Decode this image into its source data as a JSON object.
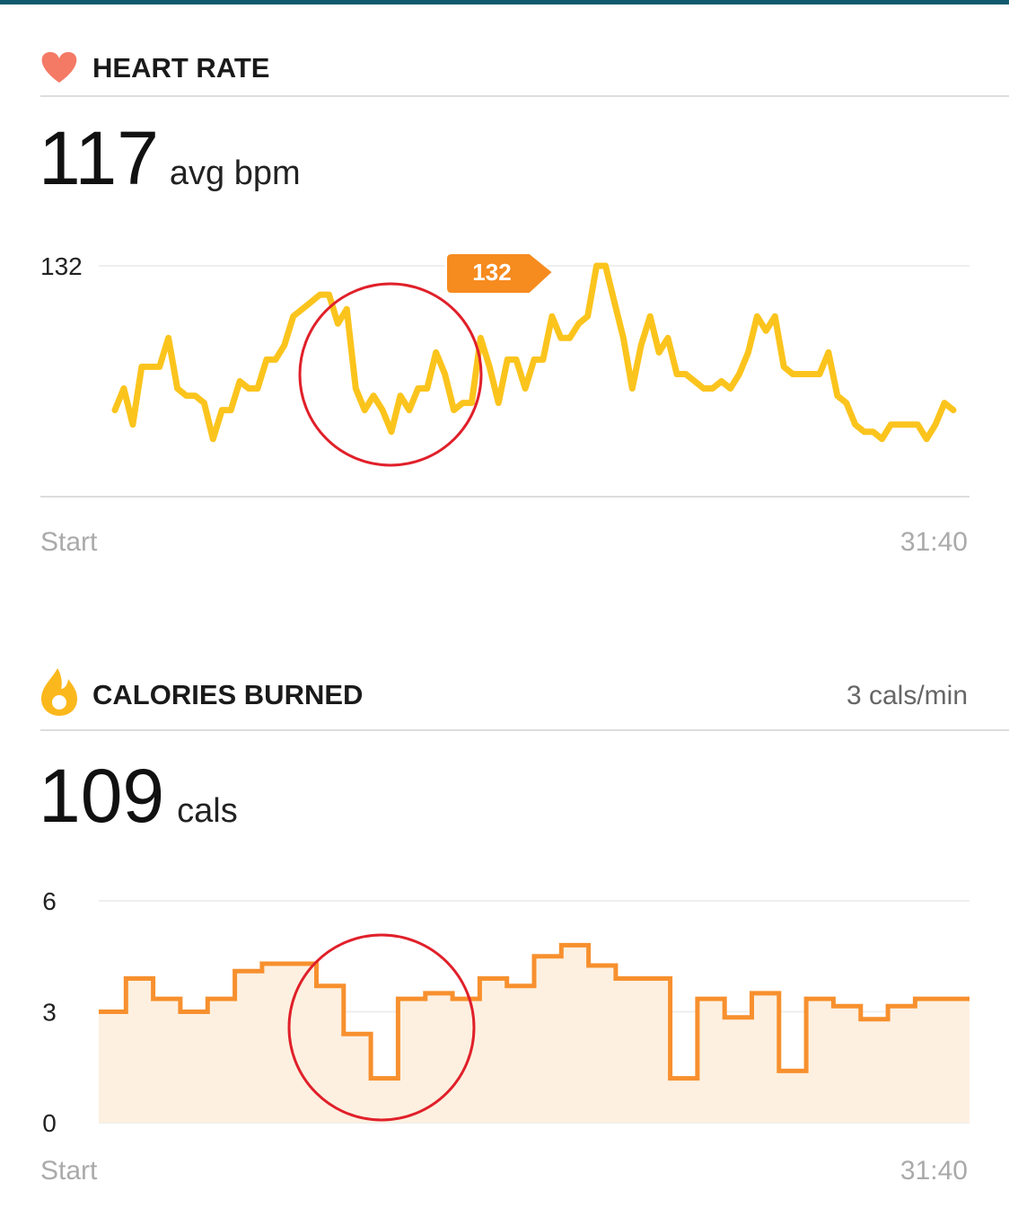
{
  "chart_data": [
    {
      "type": "line",
      "header_title": "HEART RATE",
      "summary_value": 117,
      "summary_unit": "avg bpm",
      "color": "#fbc41d",
      "ylim": [
        100,
        132
      ],
      "yticks": [
        132
      ],
      "grid": true,
      "peak_label": 132,
      "x_labels": [
        "Start",
        "31:40"
      ],
      "values": [
        112,
        115,
        110,
        118,
        118,
        118,
        122,
        115,
        114,
        114,
        113,
        108,
        112,
        112,
        116,
        115,
        115,
        119,
        119,
        121,
        125,
        126,
        127,
        128,
        128,
        124,
        126,
        115,
        112,
        114,
        112,
        109,
        114,
        112,
        115,
        115,
        120,
        117,
        112,
        113,
        113,
        122,
        118,
        113,
        119,
        119,
        115,
        119,
        119,
        125,
        122,
        122,
        124,
        125,
        132,
        132,
        127,
        122,
        115,
        121,
        125,
        120,
        122,
        117,
        117,
        116,
        115,
        115,
        116,
        115,
        117,
        120,
        125,
        123,
        125,
        118,
        117,
        117,
        117,
        117,
        120,
        114,
        113,
        110,
        109,
        109,
        108,
        110,
        110,
        110,
        110,
        108,
        110,
        113,
        112
      ]
    },
    {
      "type": "step",
      "header_title": "CALORIES BURNED",
      "rate_label": "3 cals/min",
      "summary_value": 109,
      "summary_unit": "cals",
      "color": "#f7902e",
      "fill": "#fdf0e0",
      "ylim": [
        0,
        6
      ],
      "yticks": [
        0,
        3,
        6
      ],
      "grid": true,
      "x_labels": [
        "Start",
        "31:40"
      ],
      "values": [
        3.0,
        3.9,
        3.35,
        3.0,
        3.35,
        4.1,
        4.3,
        4.3,
        3.7,
        2.4,
        1.2,
        3.35,
        3.5,
        3.35,
        3.9,
        3.7,
        4.5,
        4.8,
        4.25,
        3.9,
        3.9,
        1.2,
        3.35,
        2.85,
        3.5,
        1.4,
        3.35,
        3.15,
        2.8,
        3.15,
        3.35,
        3.35
      ]
    }
  ]
}
